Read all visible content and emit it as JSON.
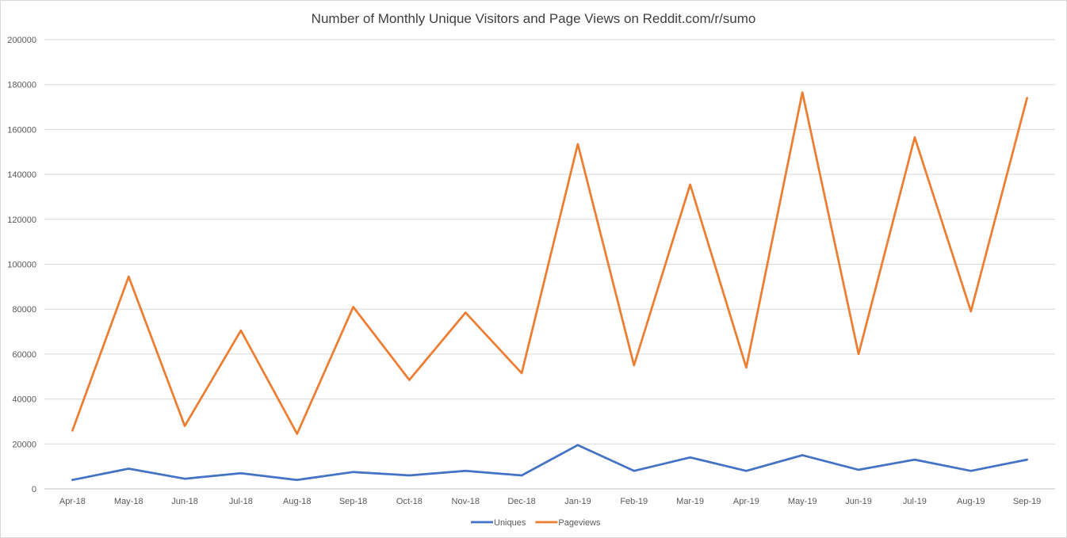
{
  "chart_data": {
    "type": "line",
    "title": "Number of Monthly Unique Visitors and Page Views on Reddit.com/r/sumo",
    "xlabel": "",
    "ylabel": "",
    "ylim": [
      0,
      200000
    ],
    "yticks": [
      0,
      20000,
      40000,
      60000,
      80000,
      100000,
      120000,
      140000,
      160000,
      180000,
      200000
    ],
    "grid": true,
    "legend_position": "bottom",
    "categories": [
      "Apr-18",
      "May-18",
      "Jun-18",
      "Jul-18",
      "Aug-18",
      "Sep-18",
      "Oct-18",
      "Nov-18",
      "Dec-18",
      "Jan-19",
      "Feb-19",
      "Mar-19",
      "Apr-19",
      "May-19",
      "Jun-19",
      "Jul-19",
      "Aug-19",
      "Sep-19"
    ],
    "series": [
      {
        "name": "Uniques",
        "color": "#4472c4",
        "values": [
          4000,
          9000,
          4500,
          7000,
          4000,
          7500,
          6000,
          8000,
          6000,
          19500,
          8000,
          14000,
          8000,
          15000,
          8500,
          13000,
          8000,
          13000
        ]
      },
      {
        "name": "Pageviews",
        "color": "#ed7d31",
        "values": [
          26000,
          94500,
          28000,
          70500,
          24500,
          81000,
          48500,
          78500,
          51500,
          153500,
          55000,
          135500,
          54000,
          176500,
          60000,
          156500,
          79000,
          174000
        ]
      }
    ]
  }
}
